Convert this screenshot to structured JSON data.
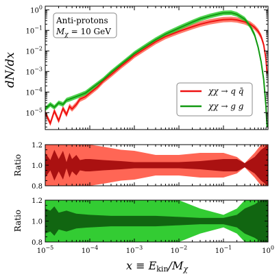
{
  "chart_data": [
    {
      "type": "line",
      "panel": "main",
      "ylabel": "dN/dx",
      "xscale": "log",
      "yscale": "log",
      "xlim": [
        1e-05,
        1
      ],
      "ylim": [
        1.5e-06,
        1.5
      ],
      "x_ticks": [
        "10^-5",
        "10^-4",
        "10^-3",
        "10^-2",
        "10^-1",
        "10^0"
      ],
      "y_ticks": [
        "10^-5",
        "10^-4",
        "10^-3",
        "10^-2",
        "10^-1",
        "10^0"
      ],
      "annotation": [
        "Anti-protons",
        "M_χ = 10 GeV"
      ],
      "legend_position": "right",
      "series": [
        {
          "name": "χχ → q q̄",
          "color": "#ee1111",
          "band_color": "#ff6655",
          "x": [
            1e-05,
            1.3e-05,
            1.6e-05,
            2e-05,
            2.5e-05,
            3e-05,
            3.5e-05,
            4e-05,
            5e-05,
            6e-05,
            8e-05,
            0.0001,
            0.00015,
            0.0002,
            0.0003,
            0.0005,
            0.0008,
            0.001,
            0.002,
            0.003,
            0.005,
            0.01,
            0.02,
            0.03,
            0.05,
            0.08,
            0.1,
            0.15,
            0.2,
            0.3,
            0.4,
            0.5,
            0.6,
            0.7,
            0.8,
            0.9,
            0.95
          ],
          "values": [
            1e-05,
            3e-06,
            1.2e-05,
            4e-06,
            1.6e-05,
            8e-06,
            2e-05,
            1.5e-05,
            2.5e-05,
            4.5e-05,
            6e-05,
            9e-05,
            0.00018,
            0.00035,
            0.0007,
            0.0018,
            0.004,
            0.006,
            0.016,
            0.028,
            0.05,
            0.09,
            0.15,
            0.2,
            0.26,
            0.31,
            0.33,
            0.34,
            0.32,
            0.26,
            0.2,
            0.14,
            0.09,
            0.05,
            0.02,
            0.004,
            0.0008
          ],
          "band_rel": 0.35
        },
        {
          "name": "χχ → g g",
          "color": "#119911",
          "band_color": "#33cc33",
          "x": [
            1e-05,
            1.3e-05,
            1.6e-05,
            2e-05,
            2.5e-05,
            3e-05,
            3.5e-05,
            4e-05,
            5e-05,
            6e-05,
            8e-05,
            0.0001,
            0.00015,
            0.0002,
            0.0003,
            0.0005,
            0.0008,
            0.001,
            0.002,
            0.003,
            0.005,
            0.01,
            0.02,
            0.03,
            0.05,
            0.08,
            0.1,
            0.15,
            0.2,
            0.3,
            0.4,
            0.5,
            0.6,
            0.7,
            0.8,
            0.9,
            0.95
          ],
          "values": [
            1.5e-05,
            2.5e-05,
            1.8e-05,
            3e-05,
            2.5e-05,
            4e-05,
            4.5e-05,
            5e-05,
            6e-05,
            7e-05,
            9e-05,
            0.00013,
            0.00025,
            0.0004,
            0.0009,
            0.0022,
            0.005,
            0.0075,
            0.02,
            0.035,
            0.065,
            0.13,
            0.25,
            0.36,
            0.5,
            0.64,
            0.7,
            0.72,
            0.6,
            0.35,
            0.16,
            0.06,
            0.015,
            0.003,
            0.0004,
            2e-05,
            2e-06
          ],
          "band_rel": 0.3
        }
      ]
    },
    {
      "type": "area",
      "panel": "ratio_qq",
      "ylabel": "Ratio",
      "xscale": "log",
      "ylim": [
        0.8,
        1.2
      ],
      "y_ticks": [
        "0.8",
        "1.0",
        "1.2"
      ],
      "x": [
        1e-05,
        1.3e-05,
        1.6e-05,
        2e-05,
        2.5e-05,
        3e-05,
        3.5e-05,
        4e-05,
        5e-05,
        6e-05,
        8e-05,
        0.0001,
        0.0002,
        0.0005,
        0.001,
        0.003,
        0.01,
        0.03,
        0.1,
        0.2,
        0.3,
        0.5,
        0.7,
        1.0
      ],
      "outer_half_width": [
        0.2,
        0.2,
        0.2,
        0.2,
        0.2,
        0.2,
        0.2,
        0.2,
        0.2,
        0.2,
        0.2,
        0.2,
        0.18,
        0.15,
        0.14,
        0.1,
        0.1,
        0.12,
        0.12,
        0.08,
        0.02,
        0.12,
        0.2,
        0.2
      ],
      "inner_half_width": [
        0.12,
        0.05,
        0.15,
        0.06,
        0.14,
        0.03,
        0.12,
        0.06,
        0.1,
        0.05,
        0.06,
        0.06,
        0.05,
        0.04,
        0.03,
        0.03,
        0.03,
        0.04,
        0.06,
        0.06,
        0.02,
        0.08,
        0.15,
        0.2
      ],
      "outer_color": "#ff6655",
      "inner_color": "#aa1111"
    },
    {
      "type": "area",
      "panel": "ratio_gg",
      "ylabel": "Ratio",
      "xscale": "log",
      "ylim": [
        0.8,
        1.2
      ],
      "y_ticks": [
        "0.8",
        "1.0",
        "1.2"
      ],
      "x": [
        1e-05,
        1.3e-05,
        1.6e-05,
        2e-05,
        3e-05,
        5e-05,
        0.0001,
        0.0003,
        0.001,
        0.003,
        0.01,
        0.03,
        0.1,
        0.2,
        0.3,
        0.5,
        0.7,
        1.0
      ],
      "outer_half_width": [
        0.2,
        0.2,
        0.2,
        0.2,
        0.2,
        0.2,
        0.2,
        0.2,
        0.2,
        0.2,
        0.2,
        0.12,
        0.06,
        0.12,
        0.2,
        0.2,
        0.2,
        0.2
      ],
      "inner_half_width": [
        0.12,
        0.1,
        0.14,
        0.08,
        0.1,
        0.07,
        0.06,
        0.05,
        0.05,
        0.05,
        0.04,
        0.03,
        0.03,
        0.06,
        0.12,
        0.16,
        0.2,
        0.2
      ],
      "outer_color": "#33cc33",
      "inner_color": "#116611"
    }
  ],
  "shared_xlabel": "x ≡ E_kin / M_χ",
  "shared_x_ticks": [
    "10^-5",
    "10^-4",
    "10^-3",
    "10^-2",
    "10^-1",
    "10^0"
  ]
}
